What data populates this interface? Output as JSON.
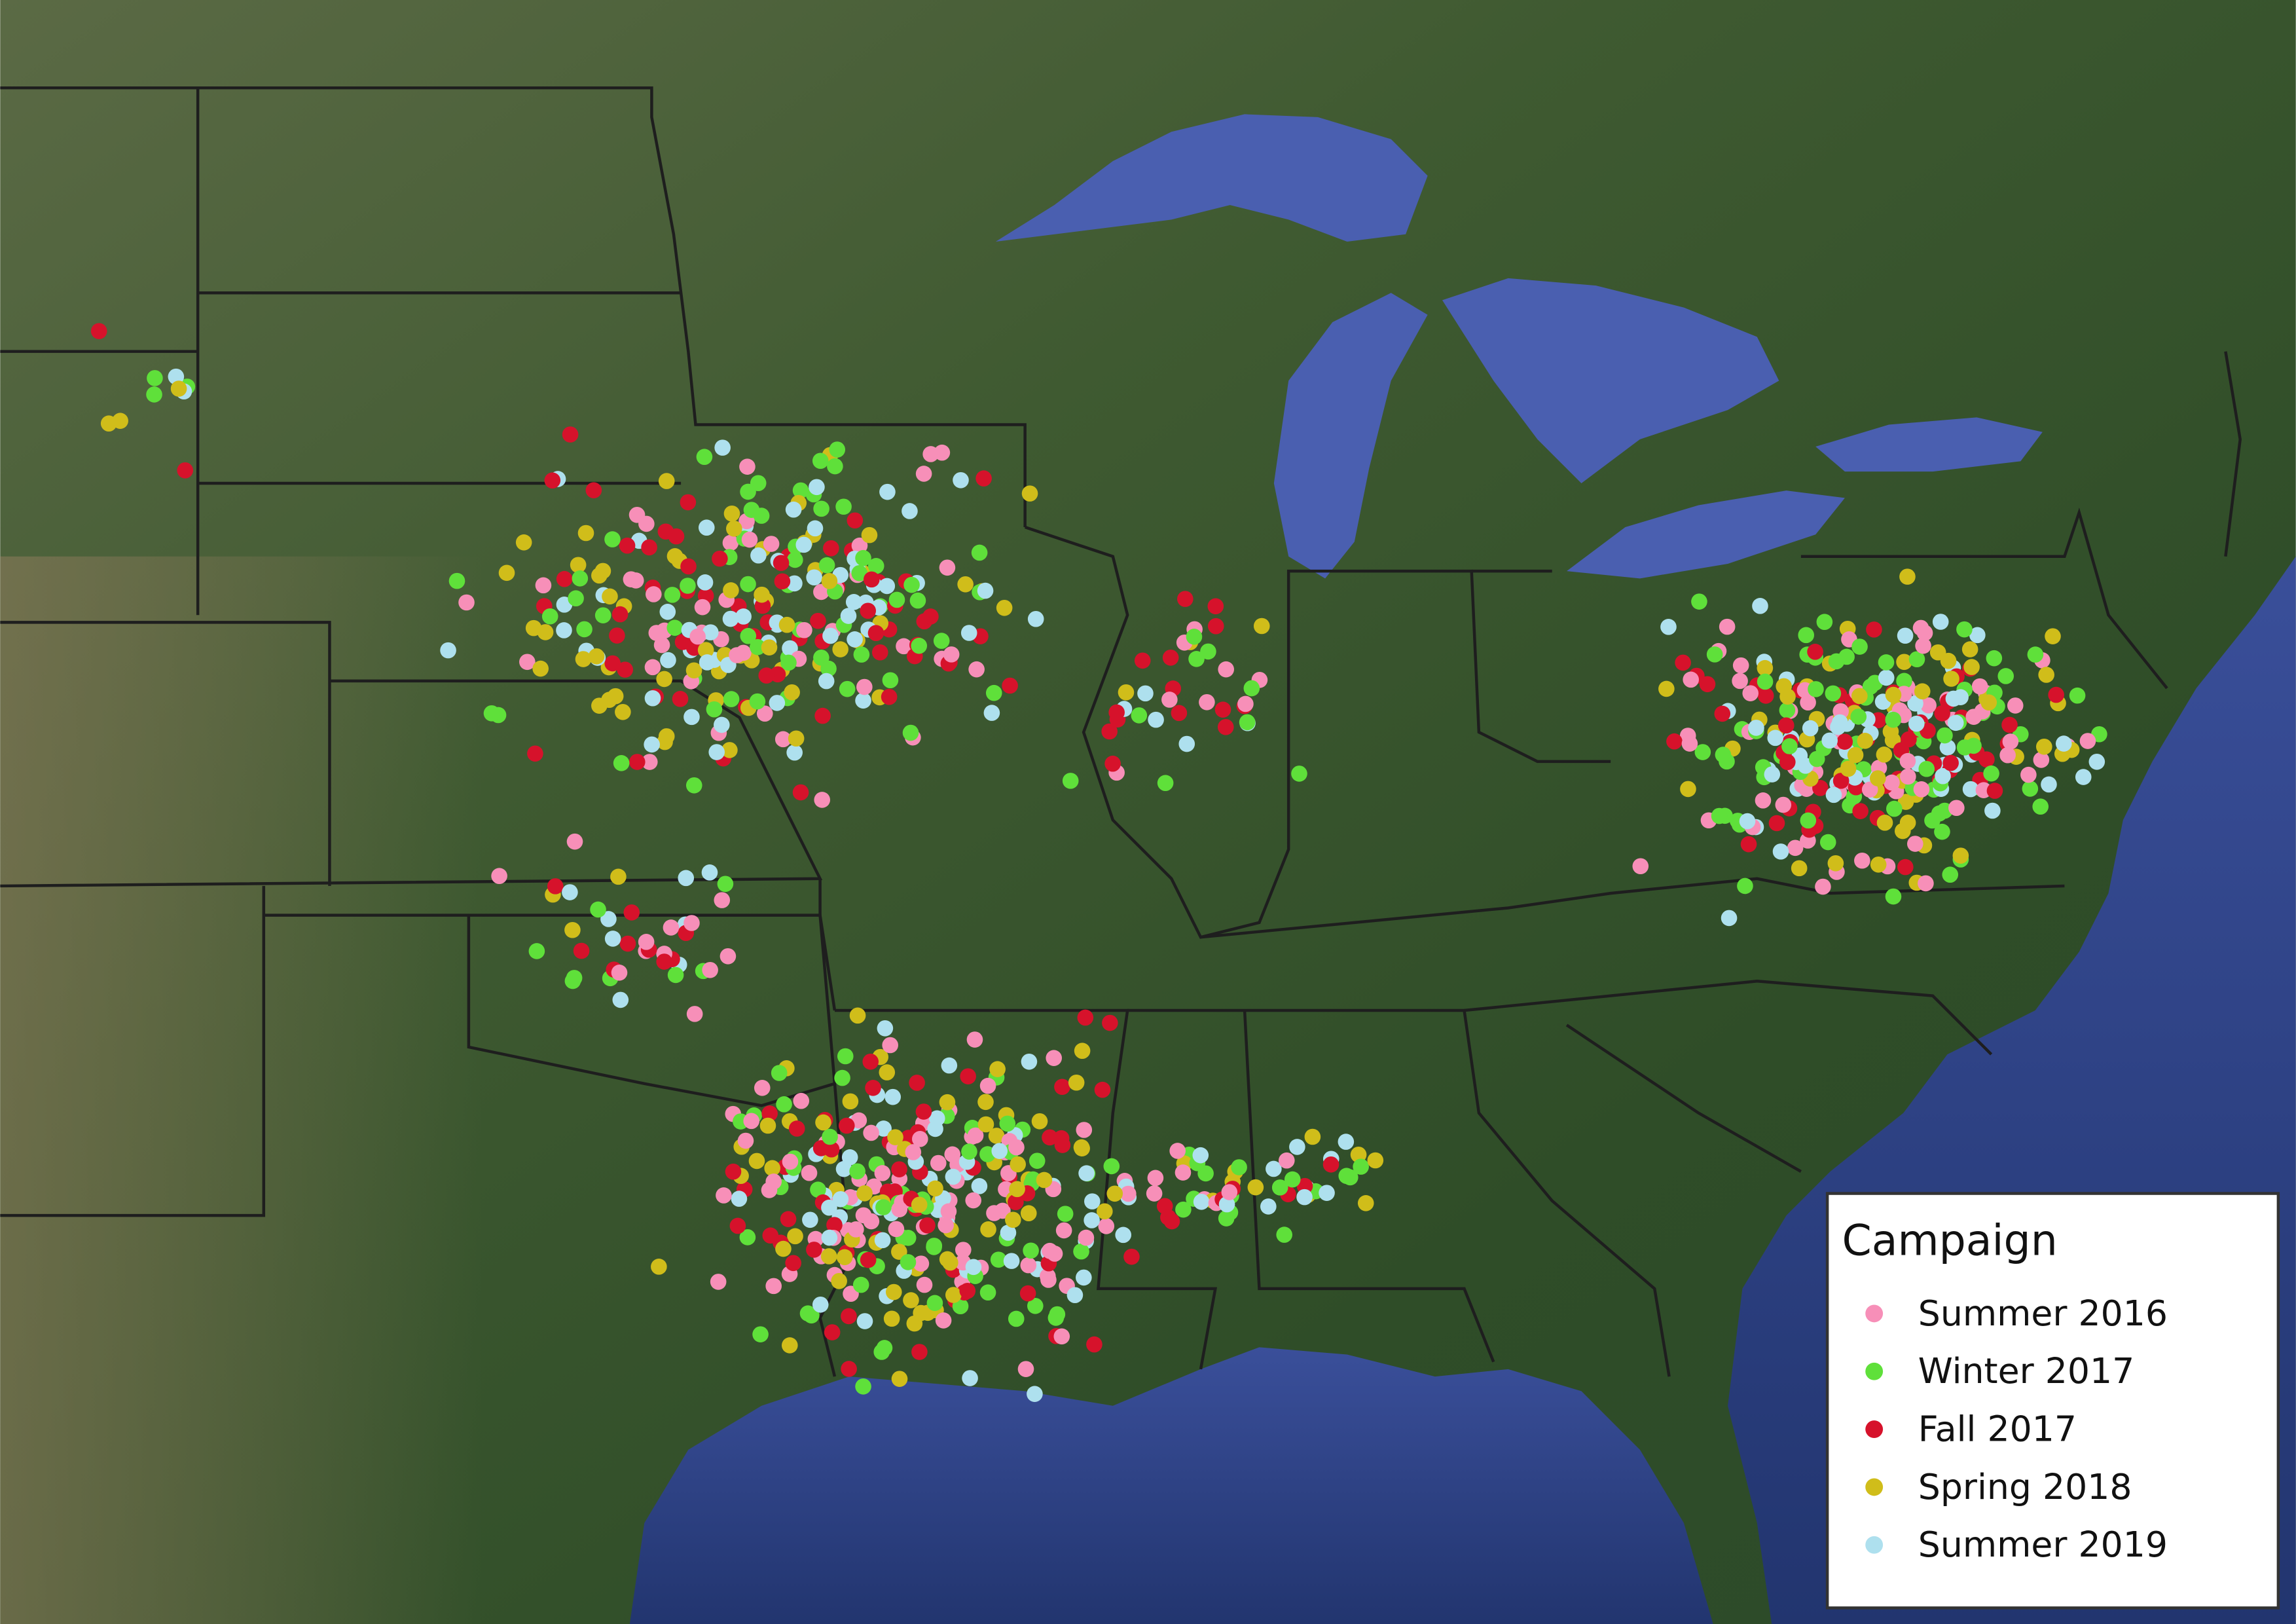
{
  "legend": {
    "title": "Campaign",
    "entries": [
      {
        "label": "Summer 2016",
        "color": "#f78fb8"
      },
      {
        "label": "Winter 2017",
        "color": "#5fe03a"
      },
      {
        "label": "Fall 2017",
        "color": "#d6122b"
      },
      {
        "label": "Spring 2018",
        "color": "#d0bd1a"
      },
      {
        "label": "Summer 2019",
        "color": "#aee0ee"
      }
    ]
  }
}
